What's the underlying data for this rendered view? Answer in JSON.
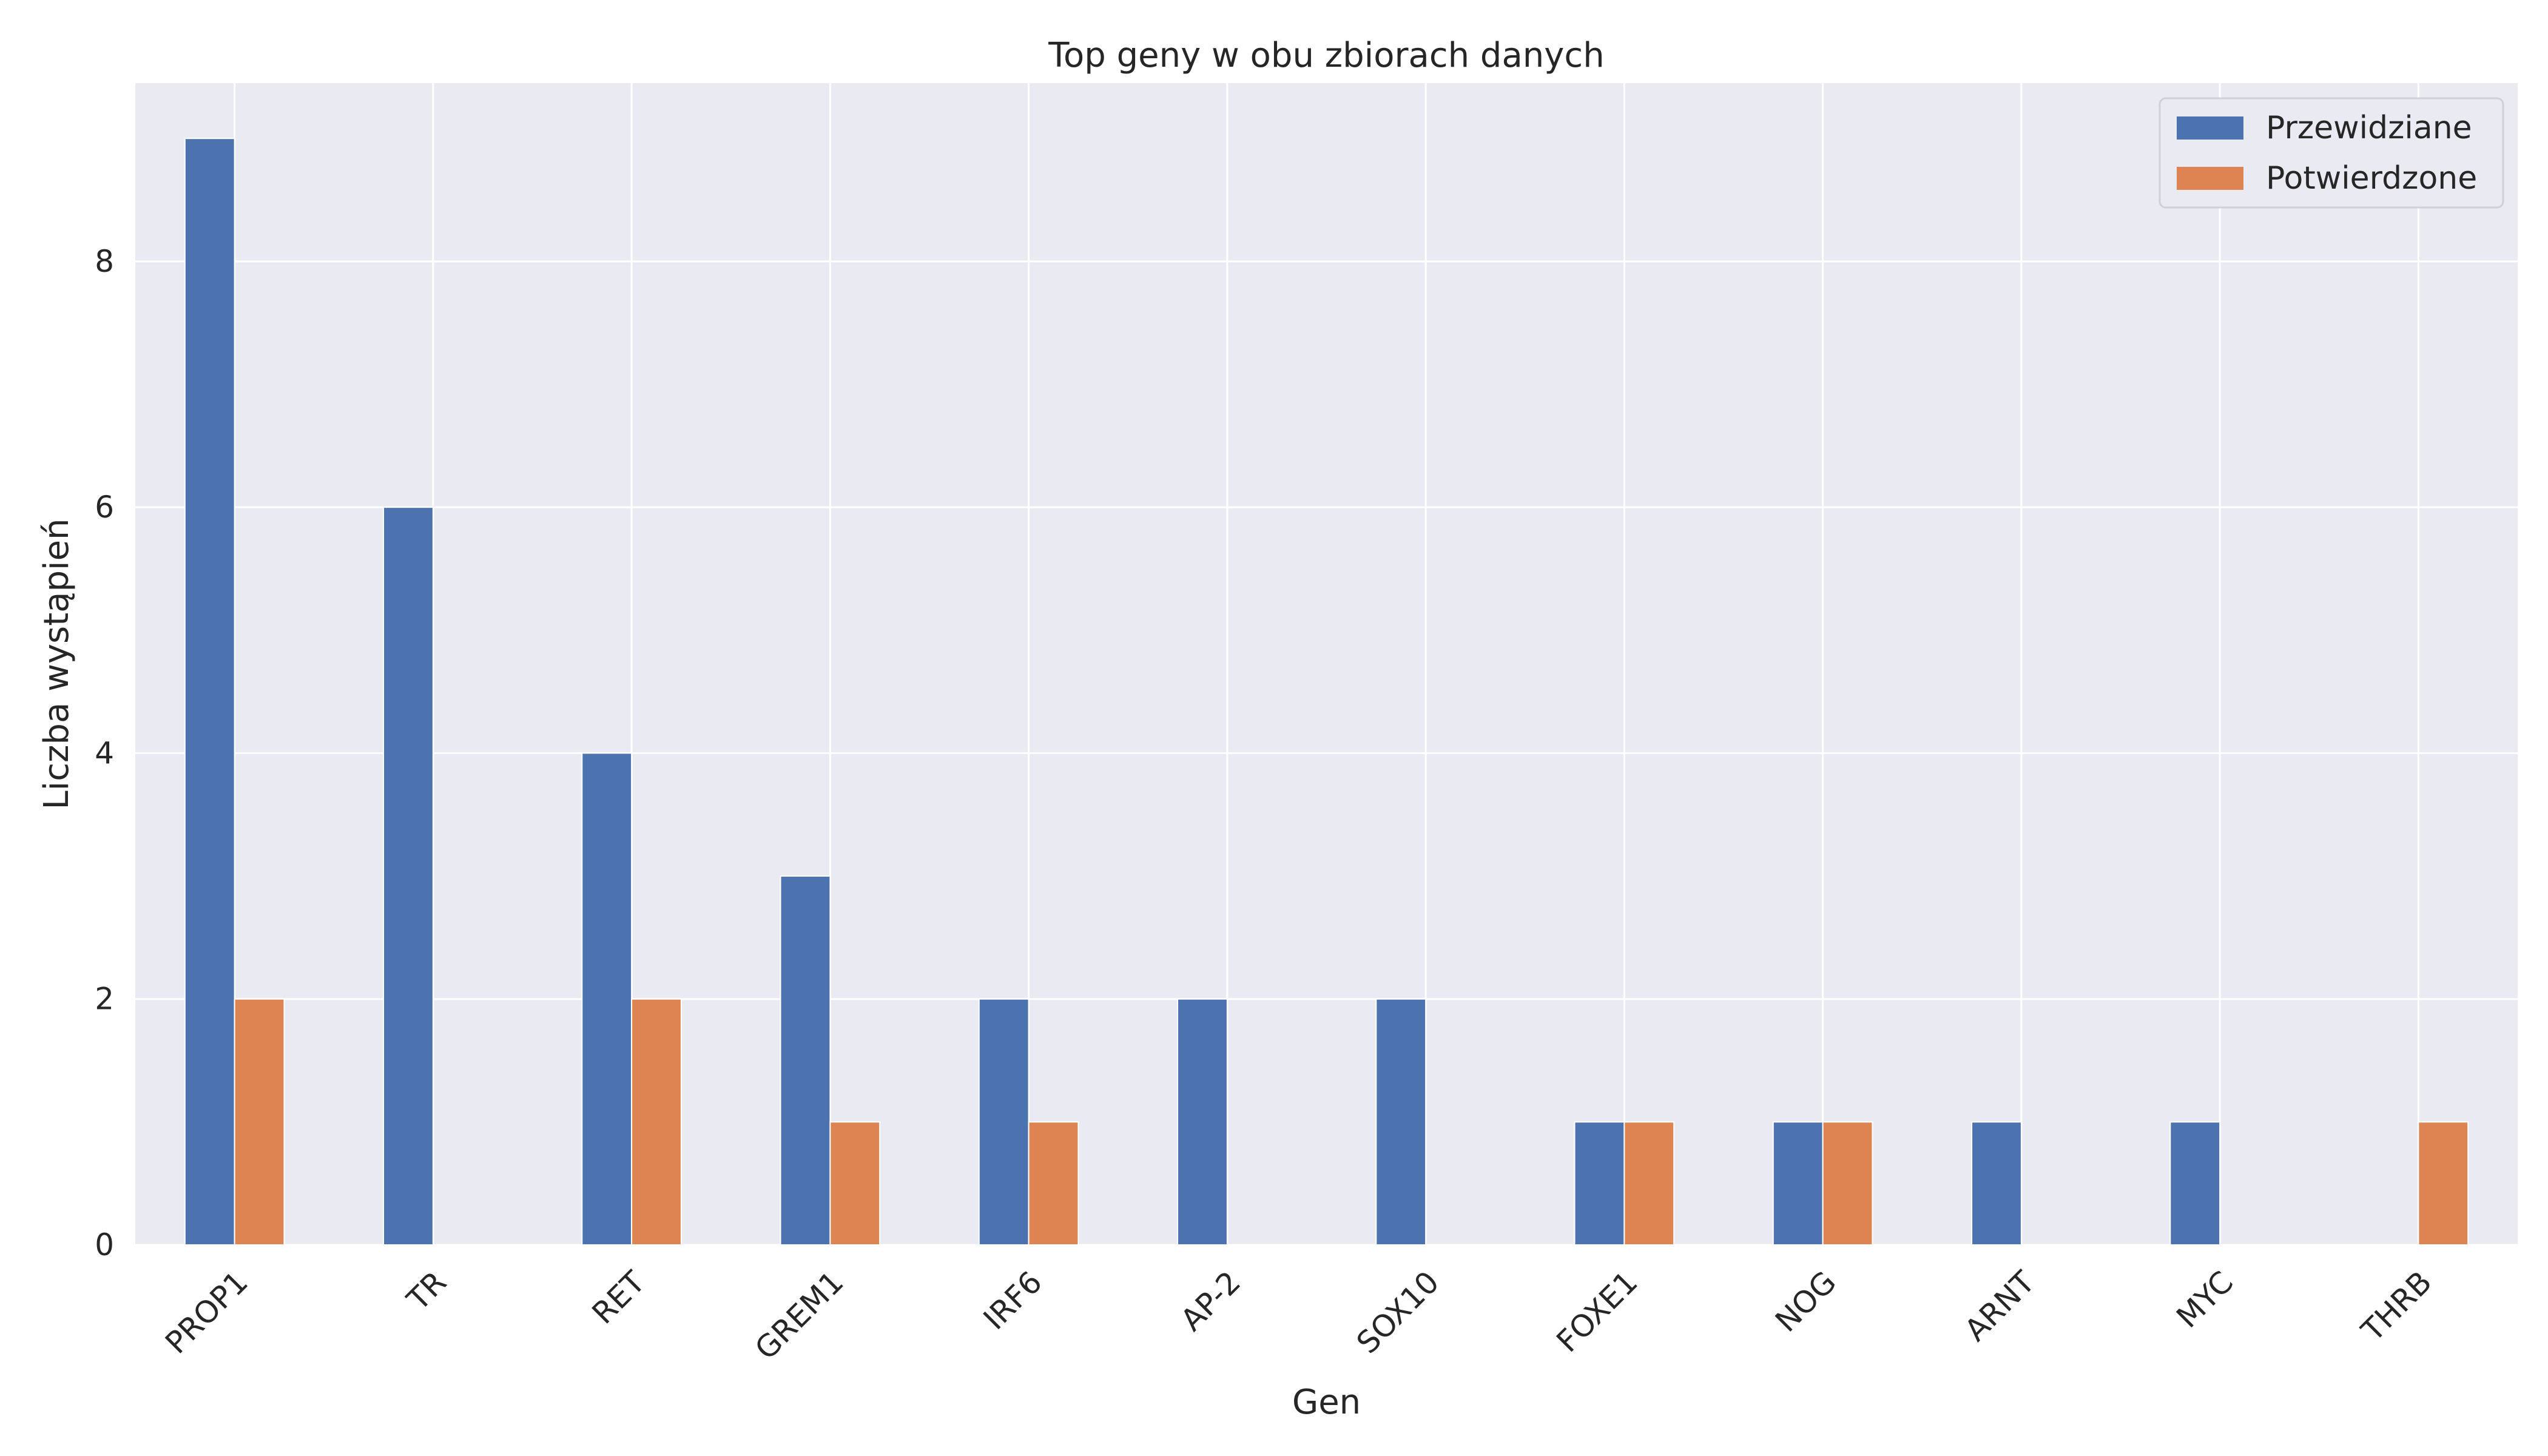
{
  "chart_data": {
    "type": "bar",
    "title": "Top geny w obu zbiorach danych",
    "xlabel": "Gen",
    "ylabel": "Liczba wystąpień",
    "categories": [
      "PROP1",
      "TR",
      "RET",
      "GREM1",
      "IRF6",
      "AP-2",
      "SOX10",
      "FOXE1",
      "NOG",
      "ARNT",
      "MYC",
      "THRB"
    ],
    "series": [
      {
        "name": "Przewidziane",
        "color": "#4c72b0",
        "values": [
          9,
          6,
          4,
          3,
          2,
          2,
          2,
          1,
          1,
          1,
          1,
          0
        ]
      },
      {
        "name": "Potwierdzone",
        "color": "#dd8452",
        "values": [
          2,
          0,
          2,
          1,
          1,
          0,
          0,
          1,
          1,
          0,
          0,
          1
        ]
      }
    ],
    "ylim": [
      0,
      9.45
    ],
    "yticks": [
      0,
      2,
      4,
      6,
      8
    ],
    "grid": true,
    "legend_position": "top-right",
    "background_color": "#eaeaf2",
    "grid_color": "#ffffff"
  }
}
